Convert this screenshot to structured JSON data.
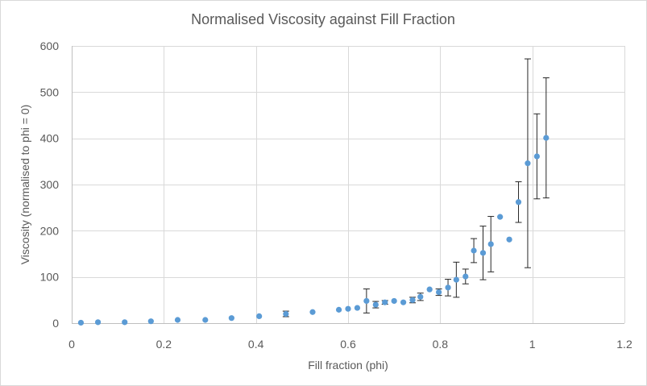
{
  "chart_data": {
    "type": "scatter",
    "title": "Normalised Viscosity against Fill Fraction",
    "xlabel": "Fill fraction (phi)",
    "ylabel": "Viscosity (normalised to phi = 0)",
    "xlim": [
      0,
      1.2
    ],
    "ylim": [
      0,
      600
    ],
    "xticks": [
      0,
      0.2,
      0.4,
      0.6,
      0.8,
      1,
      1.2
    ],
    "xtick_labels": [
      "0",
      "0.2",
      "0.4",
      "0.6",
      "0.8",
      "1",
      "1.2"
    ],
    "yticks": [
      0,
      100,
      200,
      300,
      400,
      500,
      600
    ],
    "ytick_labels": [
      "0",
      "100",
      "200",
      "300",
      "400",
      "500",
      "600"
    ],
    "grid": true,
    "marker_color": "#5b9bd5",
    "points": [
      {
        "x": 0.02,
        "y": 1,
        "err": 0
      },
      {
        "x": 0.057,
        "y": 2,
        "err": 0
      },
      {
        "x": 0.115,
        "y": 2,
        "err": 0
      },
      {
        "x": 0.172,
        "y": 4,
        "err": 0
      },
      {
        "x": 0.23,
        "y": 7,
        "err": 0
      },
      {
        "x": 0.29,
        "y": 7,
        "err": 0
      },
      {
        "x": 0.347,
        "y": 11,
        "err": 0
      },
      {
        "x": 0.407,
        "y": 15,
        "err": 0
      },
      {
        "x": 0.465,
        "y": 20,
        "err": 6
      },
      {
        "x": 0.523,
        "y": 24,
        "err": 0
      },
      {
        "x": 0.58,
        "y": 29,
        "err": 0
      },
      {
        "x": 0.6,
        "y": 31,
        "err": 0
      },
      {
        "x": 0.62,
        "y": 33,
        "err": 0
      },
      {
        "x": 0.64,
        "y": 48,
        "err": 26
      },
      {
        "x": 0.66,
        "y": 40,
        "err": 7
      },
      {
        "x": 0.68,
        "y": 45,
        "err": 4
      },
      {
        "x": 0.7,
        "y": 48,
        "err": 0
      },
      {
        "x": 0.72,
        "y": 45,
        "err": 0
      },
      {
        "x": 0.74,
        "y": 50,
        "err": 6
      },
      {
        "x": 0.757,
        "y": 57,
        "err": 8
      },
      {
        "x": 0.777,
        "y": 73,
        "err": 0
      },
      {
        "x": 0.797,
        "y": 67,
        "err": 7
      },
      {
        "x": 0.817,
        "y": 77,
        "err": 18
      },
      {
        "x": 0.835,
        "y": 94,
        "err": 38
      },
      {
        "x": 0.855,
        "y": 101,
        "err": 16
      },
      {
        "x": 0.873,
        "y": 157,
        "err": 26
      },
      {
        "x": 0.893,
        "y": 152,
        "err": 58
      },
      {
        "x": 0.91,
        "y": 171,
        "err": 60
      },
      {
        "x": 0.93,
        "y": 230,
        "err": 0
      },
      {
        "x": 0.95,
        "y": 181,
        "err": 0
      },
      {
        "x": 0.97,
        "y": 262,
        "err": 44
      },
      {
        "x": 0.99,
        "y": 346,
        "err": 226
      },
      {
        "x": 1.01,
        "y": 361,
        "err": 92
      },
      {
        "x": 1.03,
        "y": 401,
        "err": 130
      }
    ]
  }
}
